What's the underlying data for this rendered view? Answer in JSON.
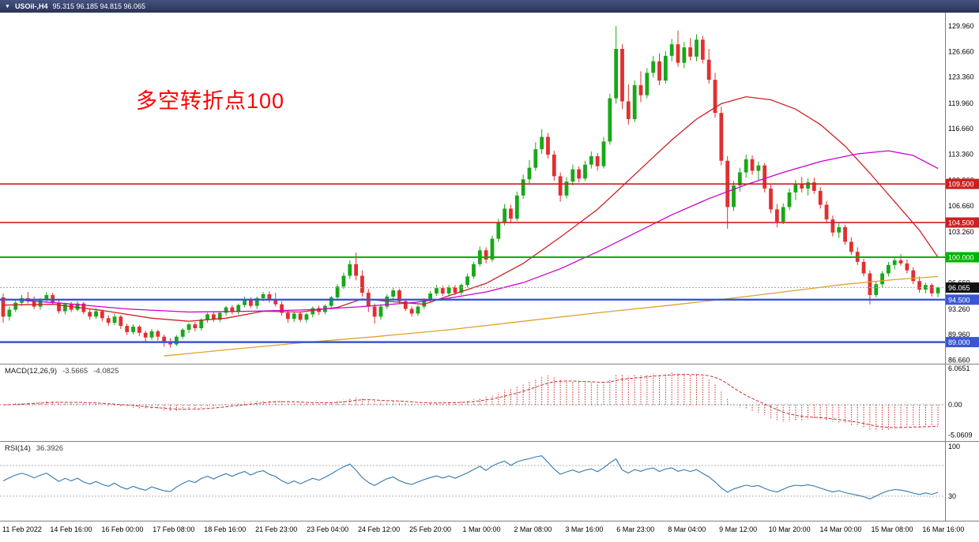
{
  "window": {
    "collapse_icon": "▼",
    "title_symbol": "USOil-,H4",
    "title_ohlc": "95.315 96.185 94.815 96.065"
  },
  "annotation": {
    "text": "多空转折点100",
    "color": "#ff0000"
  },
  "chart_data": {
    "type": "candlestick",
    "symbol": "USOil-",
    "timeframe": "H4",
    "up_color": "#18a818",
    "down_color": "#e03030",
    "y_range": [
      86.2,
      131.5
    ],
    "y_ticks": [
      "129.960",
      "126.660",
      "123.360",
      "119.960",
      "116.660",
      "113.360",
      "109.960",
      "106.660",
      "103.260",
      "99.960",
      "96.660",
      "93.260",
      "89.960",
      "86.660"
    ],
    "x_labels": [
      "11 Feb 2022",
      "14 Feb 16:00",
      "16 Feb 00:00",
      "17 Feb 08:00",
      "18 Feb 16:00",
      "21 Feb 23:00",
      "23 Feb 04:00",
      "24 Feb 12:00",
      "25 Feb 20:00",
      "1 Mar 00:00",
      "2 Mar 08:00",
      "3 Mar 16:00",
      "6 Mar 23:00",
      "8 Mar 04:00",
      "9 Mar 12:00",
      "10 Mar 20:00",
      "14 Mar 00:00",
      "15 Mar 08:00",
      "16 Mar 16:00"
    ],
    "levels": [
      {
        "value": 109.5,
        "label": "109.500",
        "color": "#cc2020",
        "width": 1.6
      },
      {
        "value": 104.5,
        "label": "104.500",
        "color": "#cc2020",
        "width": 1.6
      },
      {
        "value": 100.0,
        "label": "100.000",
        "color": "#00b400",
        "width": 2
      },
      {
        "value": 94.5,
        "label": "94.500",
        "color": "#3a56d4",
        "width": 2.4
      },
      {
        "value": 89.0,
        "label": "89.000",
        "color": "#3a56d4",
        "width": 2.4
      }
    ],
    "current_price": {
      "value": 96.065,
      "label": "96.065",
      "badge_color": "#111111",
      "line_color": "#aaaaaa"
    },
    "overlays": [
      {
        "name": "ma-red",
        "color": "#cc2222",
        "points": [
          [
            0,
            93.8
          ],
          [
            8,
            93.9
          ],
          [
            16,
            93.1
          ],
          [
            24,
            92.1
          ],
          [
            30,
            91.7
          ],
          [
            36,
            92.1
          ],
          [
            42,
            93.0
          ],
          [
            48,
            92.9
          ],
          [
            54,
            93.5
          ],
          [
            58,
            94.6
          ],
          [
            62,
            94.3
          ],
          [
            68,
            93.9
          ],
          [
            72,
            95.0
          ],
          [
            78,
            96.6
          ],
          [
            84,
            99.2
          ],
          [
            90,
            102.6
          ],
          [
            96,
            106.2
          ],
          [
            100,
            109.2
          ],
          [
            104,
            112.2
          ],
          [
            108,
            115.2
          ],
          [
            112,
            117.9
          ],
          [
            116,
            119.9
          ],
          [
            120,
            120.8
          ],
          [
            124,
            120.4
          ],
          [
            128,
            119.2
          ],
          [
            132,
            117.2
          ],
          [
            136,
            114.4
          ],
          [
            140,
            110.9
          ],
          [
            144,
            107.2
          ],
          [
            148,
            103.5
          ],
          [
            151,
            100.0
          ]
        ]
      },
      {
        "name": "ma-magenta",
        "color": "#cc00cc",
        "points": [
          [
            0,
            94.6
          ],
          [
            10,
            94.0
          ],
          [
            20,
            93.3
          ],
          [
            30,
            92.9
          ],
          [
            40,
            93.0
          ],
          [
            50,
            93.2
          ],
          [
            58,
            93.6
          ],
          [
            66,
            94.1
          ],
          [
            72,
            94.7
          ],
          [
            78,
            95.5
          ],
          [
            84,
            96.7
          ],
          [
            90,
            98.5
          ],
          [
            96,
            100.7
          ],
          [
            102,
            103.1
          ],
          [
            108,
            105.5
          ],
          [
            114,
            107.6
          ],
          [
            120,
            109.4
          ],
          [
            126,
            111.0
          ],
          [
            132,
            112.4
          ],
          [
            138,
            113.4
          ],
          [
            143,
            113.8
          ],
          [
            147,
            113.2
          ],
          [
            151,
            111.5
          ]
        ]
      },
      {
        "name": "ma-orange",
        "color": "#e0a030",
        "points": [
          [
            26,
            87.2
          ],
          [
            36,
            88.0
          ],
          [
            48,
            88.9
          ],
          [
            60,
            89.7
          ],
          [
            72,
            90.6
          ],
          [
            84,
            91.7
          ],
          [
            96,
            92.8
          ],
          [
            108,
            93.8
          ],
          [
            120,
            94.9
          ],
          [
            128,
            95.7
          ],
          [
            136,
            96.5
          ],
          [
            144,
            97.1
          ],
          [
            151,
            97.5
          ]
        ]
      }
    ],
    "candles": [
      [
        94.8,
        95.3,
        91.5,
        92.3
      ],
      [
        92.3,
        93.6,
        91.8,
        93.2
      ],
      [
        93.2,
        94.5,
        92.9,
        94.1
      ],
      [
        94.1,
        95.1,
        93.7,
        94.7
      ],
      [
        94.7,
        95.5,
        94.0,
        94.3
      ],
      [
        94.3,
        94.9,
        93.3,
        93.6
      ],
      [
        93.6,
        94.7,
        93.2,
        94.4
      ],
      [
        94.4,
        95.5,
        94.1,
        95.1
      ],
      [
        95.1,
        95.4,
        93.9,
        94.1
      ],
      [
        94.1,
        94.4,
        92.7,
        93.0
      ],
      [
        93.0,
        94.1,
        92.6,
        93.9
      ],
      [
        93.9,
        94.2,
        92.9,
        93.2
      ],
      [
        93.2,
        94.3,
        93.0,
        94.0
      ],
      [
        94.0,
        94.2,
        92.6,
        92.9
      ],
      [
        92.9,
        93.3,
        91.9,
        92.3
      ],
      [
        92.3,
        93.4,
        92.0,
        93.0
      ],
      [
        93.0,
        93.2,
        91.7,
        92.1
      ],
      [
        92.1,
        92.5,
        91.1,
        91.5
      ],
      [
        91.5,
        92.7,
        91.2,
        92.3
      ],
      [
        92.3,
        92.5,
        90.7,
        91.1
      ],
      [
        91.1,
        91.4,
        89.9,
        90.3
      ],
      [
        90.3,
        91.3,
        90.0,
        91.0
      ],
      [
        91.0,
        91.2,
        89.8,
        90.2
      ],
      [
        90.2,
        90.5,
        89.1,
        89.6
      ],
      [
        89.6,
        90.7,
        89.3,
        90.4
      ],
      [
        90.4,
        90.6,
        89.2,
        89.7
      ],
      [
        89.7,
        90.0,
        88.4,
        89.0
      ],
      [
        89.0,
        89.5,
        88.3,
        88.7
      ],
      [
        88.7,
        89.9,
        88.5,
        89.7
      ],
      [
        89.7,
        90.8,
        89.4,
        90.6
      ],
      [
        90.6,
        91.5,
        90.2,
        91.3
      ],
      [
        91.3,
        91.6,
        90.4,
        90.8
      ],
      [
        90.8,
        92.1,
        90.5,
        91.9
      ],
      [
        91.9,
        92.8,
        91.5,
        92.6
      ],
      [
        92.6,
        92.9,
        91.6,
        91.9
      ],
      [
        91.9,
        93.0,
        91.6,
        92.8
      ],
      [
        92.8,
        93.7,
        92.4,
        93.5
      ],
      [
        93.5,
        93.8,
        92.6,
        92.9
      ],
      [
        92.9,
        94.0,
        92.6,
        93.8
      ],
      [
        93.8,
        94.9,
        93.5,
        94.5
      ],
      [
        94.5,
        94.8,
        93.4,
        93.7
      ],
      [
        93.7,
        94.9,
        93.3,
        94.7
      ],
      [
        94.7,
        95.5,
        94.3,
        95.2
      ],
      [
        95.2,
        95.6,
        94.1,
        94.4
      ],
      [
        94.4,
        95.4,
        93.6,
        93.9
      ],
      [
        93.9,
        94.3,
        92.4,
        92.8
      ],
      [
        92.8,
        93.1,
        91.5,
        92.0
      ],
      [
        92.0,
        92.9,
        91.6,
        92.7
      ],
      [
        92.7,
        93.0,
        91.6,
        91.9
      ],
      [
        91.9,
        92.8,
        91.5,
        92.6
      ],
      [
        92.6,
        93.6,
        92.2,
        93.4
      ],
      [
        93.4,
        93.7,
        92.5,
        92.9
      ],
      [
        92.9,
        93.9,
        92.6,
        93.7
      ],
      [
        93.7,
        95.0,
        93.4,
        94.8
      ],
      [
        94.8,
        96.5,
        94.5,
        96.2
      ],
      [
        96.2,
        98.0,
        95.9,
        97.6
      ],
      [
        97.6,
        99.6,
        97.2,
        99.1
      ],
      [
        99.1,
        100.6,
        97.0,
        97.6
      ],
      [
        97.6,
        98.3,
        94.9,
        95.4
      ],
      [
        95.4,
        95.9,
        92.9,
        93.6
      ],
      [
        93.6,
        94.0,
        91.4,
        92.3
      ],
      [
        92.3,
        93.9,
        91.9,
        93.6
      ],
      [
        93.6,
        95.2,
        93.3,
        94.9
      ],
      [
        94.9,
        96.0,
        94.5,
        95.7
      ],
      [
        95.7,
        95.9,
        94.0,
        94.3
      ],
      [
        94.3,
        94.6,
        93.0,
        93.3
      ],
      [
        93.3,
        93.6,
        92.3,
        92.7
      ],
      [
        92.7,
        93.8,
        92.4,
        93.6
      ],
      [
        93.6,
        94.7,
        93.3,
        94.5
      ],
      [
        94.5,
        95.6,
        94.2,
        95.3
      ],
      [
        95.3,
        96.4,
        95.0,
        96.0
      ],
      [
        96.0,
        96.3,
        95.0,
        95.3
      ],
      [
        95.3,
        96.4,
        94.9,
        96.1
      ],
      [
        96.1,
        96.4,
        95.1,
        95.4
      ],
      [
        95.4,
        96.6,
        95.1,
        96.4
      ],
      [
        96.4,
        97.9,
        96.1,
        97.5
      ],
      [
        97.5,
        99.4,
        97.2,
        99.1
      ],
      [
        99.1,
        101.4,
        98.8,
        100.9
      ],
      [
        100.9,
        101.3,
        99.2,
        99.7
      ],
      [
        99.7,
        102.8,
        99.4,
        102.4
      ],
      [
        102.4,
        105.0,
        102.0,
        104.5
      ],
      [
        104.5,
        106.9,
        104.1,
        106.3
      ],
      [
        106.3,
        106.8,
        104.5,
        105.0
      ],
      [
        105.0,
        108.5,
        104.7,
        108.0
      ],
      [
        108.0,
        110.7,
        107.6,
        110.1
      ],
      [
        110.1,
        112.6,
        109.6,
        111.6
      ],
      [
        111.6,
        114.9,
        111.2,
        114.0
      ],
      [
        114.0,
        116.6,
        113.4,
        115.6
      ],
      [
        115.6,
        116.1,
        112.8,
        113.3
      ],
      [
        113.3,
        113.8,
        109.9,
        110.5
      ],
      [
        110.5,
        111.0,
        107.2,
        108.0
      ],
      [
        108.0,
        110.4,
        107.6,
        109.8
      ],
      [
        109.8,
        112.0,
        109.3,
        111.4
      ],
      [
        111.4,
        111.8,
        109.7,
        110.2
      ],
      [
        110.2,
        112.5,
        109.9,
        112.0
      ],
      [
        112.0,
        113.7,
        111.5,
        113.1
      ],
      [
        113.1,
        113.5,
        111.2,
        111.8
      ],
      [
        111.8,
        115.6,
        111.5,
        115.0
      ],
      [
        115.0,
        121.2,
        114.6,
        120.6
      ],
      [
        120.6,
        129.96,
        119.9,
        127.0
      ],
      [
        127.0,
        127.6,
        119.2,
        120.2
      ],
      [
        120.2,
        122.4,
        117.2,
        117.9
      ],
      [
        117.9,
        122.9,
        117.5,
        122.3
      ],
      [
        122.3,
        124.1,
        120.1,
        121.0
      ],
      [
        121.0,
        124.5,
        120.6,
        123.9
      ],
      [
        123.9,
        126.1,
        123.3,
        125.4
      ],
      [
        125.4,
        126.4,
        122.3,
        122.9
      ],
      [
        122.9,
        126.7,
        122.5,
        126.1
      ],
      [
        126.1,
        128.3,
        125.4,
        127.6
      ],
      [
        127.6,
        129.4,
        124.7,
        125.2
      ],
      [
        125.2,
        127.9,
        124.5,
        127.2
      ],
      [
        127.2,
        128.4,
        125.5,
        126.0
      ],
      [
        126.0,
        128.9,
        125.4,
        128.2
      ],
      [
        128.2,
        128.7,
        125.1,
        125.6
      ],
      [
        125.6,
        127.0,
        122.5,
        123.0
      ],
      [
        123.0,
        123.9,
        118.1,
        118.7
      ],
      [
        118.7,
        119.5,
        111.9,
        112.5
      ],
      [
        112.5,
        113.1,
        103.7,
        106.5
      ],
      [
        106.5,
        109.9,
        106.0,
        109.3
      ],
      [
        109.3,
        111.6,
        108.5,
        111.0
      ],
      [
        111.0,
        113.3,
        110.3,
        112.7
      ],
      [
        112.7,
        113.2,
        110.7,
        111.2
      ],
      [
        111.2,
        112.4,
        110.0,
        111.9
      ],
      [
        111.9,
        112.2,
        108.4,
        108.9
      ],
      [
        108.9,
        109.5,
        105.7,
        106.2
      ],
      [
        106.2,
        106.9,
        103.9,
        104.6
      ],
      [
        104.6,
        107.0,
        104.3,
        106.5
      ],
      [
        106.5,
        108.9,
        106.1,
        108.4
      ],
      [
        108.4,
        110.0,
        107.4,
        109.5
      ],
      [
        109.5,
        110.4,
        108.4,
        108.9
      ],
      [
        108.9,
        110.2,
        108.0,
        109.7
      ],
      [
        109.7,
        110.3,
        108.2,
        108.6
      ],
      [
        108.6,
        109.1,
        106.3,
        106.8
      ],
      [
        106.8,
        107.3,
        104.4,
        104.9
      ],
      [
        104.9,
        105.4,
        102.7,
        103.2
      ],
      [
        103.2,
        104.5,
        102.5,
        103.9
      ],
      [
        103.9,
        104.2,
        101.6,
        102.0
      ],
      [
        102.0,
        102.6,
        100.3,
        100.7
      ],
      [
        100.7,
        101.3,
        99.0,
        99.4
      ],
      [
        99.4,
        99.8,
        97.5,
        97.9
      ],
      [
        97.9,
        98.3,
        93.9,
        95.1
      ],
      [
        95.1,
        96.9,
        94.8,
        96.5
      ],
      [
        96.5,
        98.2,
        96.1,
        97.9
      ],
      [
        97.9,
        99.4,
        97.5,
        99.0
      ],
      [
        99.0,
        100.1,
        98.4,
        99.6
      ],
      [
        99.6,
        100.4,
        98.9,
        99.2
      ],
      [
        99.2,
        99.7,
        97.9,
        98.3
      ],
      [
        98.3,
        98.7,
        96.5,
        96.9
      ],
      [
        96.9,
        97.5,
        95.4,
        95.8
      ],
      [
        95.8,
        96.7,
        95.3,
        96.4
      ],
      [
        96.4,
        96.6,
        94.9,
        95.315
      ],
      [
        95.315,
        96.185,
        94.815,
        96.065
      ]
    ],
    "macd": {
      "label": "MACD(12,26,9)",
      "value_main": "-3.5665",
      "value_signal": "-4.0825",
      "axis": [
        "6.0651",
        "0.00",
        "-5.0609"
      ],
      "range": [
        -5.8,
        6.6
      ],
      "color": "#cc3030",
      "signal_color": "#cc3030"
    },
    "rsi": {
      "label": "RSI(14)",
      "value": "36.3926",
      "axis": [
        "100",
        "30"
      ],
      "level_lines": [
        70,
        30
      ],
      "color": "#3078b0",
      "range": [
        0,
        100
      ]
    }
  }
}
